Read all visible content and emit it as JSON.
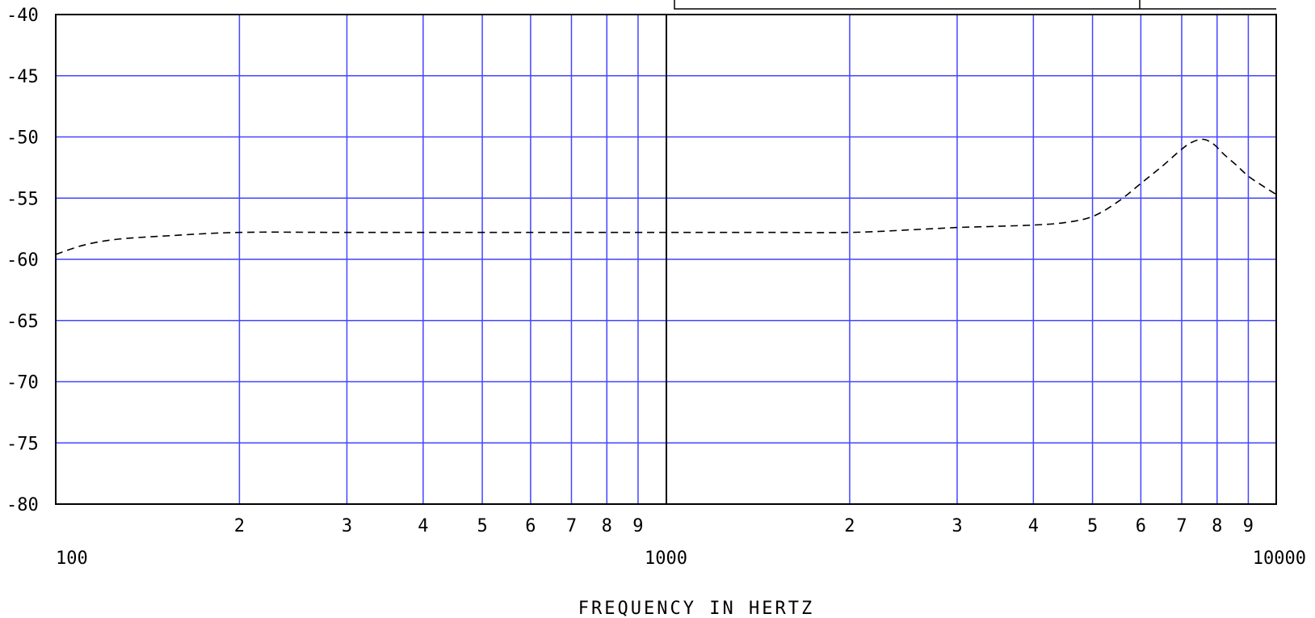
{
  "chart_data": {
    "type": "line",
    "title": "",
    "xlabel": "FREQUENCY IN HERTZ",
    "ylabel": "",
    "xscale": "log",
    "xlim": [
      100,
      10000
    ],
    "ylim": [
      -80,
      -40
    ],
    "grid": true,
    "grid_color": "#4444ff",
    "y_ticks": [
      "-40",
      "-45",
      "-50",
      "-55",
      "-60",
      "-65",
      "-70",
      "-75",
      "-80"
    ],
    "x_decade_labels": [
      {
        "value": 100,
        "label": "100"
      },
      {
        "value": 1000,
        "label": "1000"
      },
      {
        "value": 10000,
        "label": "10000"
      }
    ],
    "x_minor_labels": [
      {
        "value": 200,
        "label": "2"
      },
      {
        "value": 300,
        "label": "3"
      },
      {
        "value": 400,
        "label": "4"
      },
      {
        "value": 500,
        "label": "5"
      },
      {
        "value": 600,
        "label": "6"
      },
      {
        "value": 700,
        "label": "7"
      },
      {
        "value": 800,
        "label": "8"
      },
      {
        "value": 900,
        "label": "9"
      },
      {
        "value": 2000,
        "label": "2"
      },
      {
        "value": 3000,
        "label": "3"
      },
      {
        "value": 4000,
        "label": "4"
      },
      {
        "value": 5000,
        "label": "5"
      },
      {
        "value": 6000,
        "label": "6"
      },
      {
        "value": 7000,
        "label": "7"
      },
      {
        "value": 8000,
        "label": "8"
      },
      {
        "value": 9000,
        "label": "9"
      }
    ],
    "series": [
      {
        "line_style": "dashed",
        "color": "#000000",
        "x": [
          100,
          110,
          120,
          130,
          150,
          200,
          300,
          500,
          700,
          1000,
          1500,
          2000,
          2500,
          3000,
          3500,
          4000,
          4500,
          5000,
          5500,
          6000,
          6500,
          7000,
          7300,
          7600,
          7900,
          8200,
          8600,
          9000,
          9500,
          10000
        ],
        "y": [
          -59.6,
          -58.9,
          -58.5,
          -58.3,
          -58.1,
          -57.8,
          -57.8,
          -57.8,
          -57.8,
          -57.8,
          -57.8,
          -57.8,
          -57.6,
          -57.4,
          -57.3,
          -57.2,
          -57.0,
          -56.5,
          -55.3,
          -53.8,
          -52.4,
          -51.0,
          -50.4,
          -50.2,
          -50.6,
          -51.4,
          -52.3,
          -53.2,
          -54.0,
          -54.7
        ]
      }
    ]
  }
}
